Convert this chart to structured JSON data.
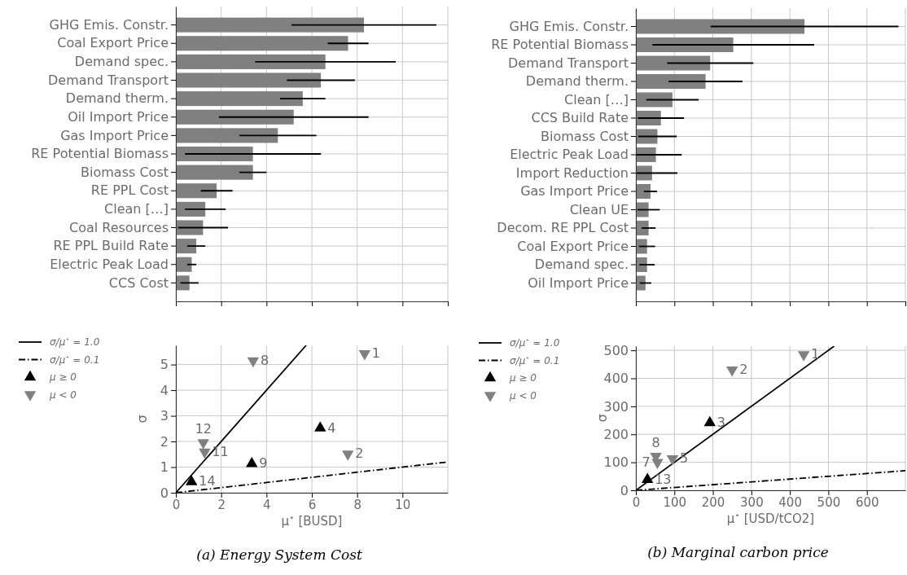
{
  "chart_data": [
    {
      "type": "bar",
      "orientation": "horizontal",
      "categories": [
        "GHG Emis. Constr.",
        "Coal Export Price",
        "Demand spec.",
        "Demand Transport",
        "Demand therm.",
        "Oil Import Price",
        "Gas Import Price",
        "RE Potential Biomass",
        "Biomass Cost",
        "RE PPL Cost",
        "Clean […]",
        "Coal Resources",
        "RE PPL Build Rate",
        "Electric Peak Load",
        "CCS Cost"
      ],
      "values": [
        8.3,
        7.6,
        6.6,
        6.4,
        5.6,
        5.2,
        4.5,
        3.4,
        3.4,
        1.8,
        1.3,
        1.2,
        0.9,
        0.7,
        0.6
      ],
      "errors": [
        3.2,
        0.9,
        3.1,
        1.5,
        1.0,
        3.3,
        1.7,
        3.0,
        0.6,
        0.7,
        0.9,
        1.1,
        0.4,
        0.2,
        0.4
      ],
      "color": "#808080",
      "xlim": [
        0,
        12
      ],
      "xticks": [
        0,
        2,
        4,
        6,
        8,
        10,
        12
      ],
      "grid": true,
      "tick_labels": "y"
    },
    {
      "type": "bar",
      "orientation": "horizontal",
      "categories": [
        "GHG Emis. Constr.",
        "RE Potential Biomass",
        "Demand Transport",
        "Demand therm.",
        "Clean […]",
        "CCS Build Rate",
        "Biomass Cost",
        "Electric Peak Load",
        "Import Reduction",
        "Gas Import Price",
        "Clean UE",
        "Decom. RE PPL Cost",
        "Coal Export Price",
        "Demand spec.",
        "Oil Import Price"
      ],
      "values": [
        438,
        253,
        193,
        181,
        95,
        65,
        56,
        52,
        42,
        38,
        33,
        33,
        29,
        29,
        25
      ],
      "errors": [
        244,
        210,
        112,
        96,
        68,
        60,
        50,
        [
          0,
          119
        ],
        [
          0,
          108
        ],
        17,
        29,
        18,
        21,
        20,
        15
      ],
      "color": "#808080",
      "xlim": [
        0,
        700
      ],
      "xticks": [
        0,
        100,
        200,
        300,
        400,
        500,
        600,
        700
      ],
      "grid": true,
      "tick_labels": "y"
    },
    {
      "type": "scatter",
      "xlabel": "μ$^{⋆}$ [BUSD]",
      "ylabel": "σ",
      "annotations": [
        "(a) Energy System Cost",
        {
          "text": "4",
          "x": 6.37,
          "y": 2.52
        },
        {
          "text": "9",
          "x": 3.35,
          "y": 1.13
        },
        {
          "text": "14",
          "x": 0.69,
          "y": 0.43
        },
        {
          "text": "1",
          "x": 8.33,
          "y": 5.43
        },
        {
          "text": "2",
          "x": 7.59,
          "y": 1.51
        },
        {
          "text": "8",
          "x": 3.41,
          "y": 5.15
        },
        {
          "text": "11",
          "x": 1.27,
          "y": 1.59
        },
        {
          "text": "12",
          "x": 1.21,
          "y": 1.96
        }
      ],
      "xlim": [
        0,
        12
      ],
      "xticks": [
        0,
        2,
        4,
        6,
        8,
        10
      ],
      "ylim": [
        0,
        5.75
      ],
      "yticks": [
        0,
        1,
        2,
        3,
        4,
        5
      ],
      "grid": true,
      "legend": "left",
      "series": [
        {
          "type": "line",
          "name": "σ/μ$^{⋆}$ = 1.0",
          "color": "#000000",
          "line_style": "solid",
          "x": [
            0,
            5.75
          ],
          "values": [
            0,
            5.75
          ]
        },
        {
          "type": "line",
          "name": "σ/μ$^{⋆}$ = 0.1",
          "color": "#000000",
          "line_style": "dashdot",
          "x": [
            0,
            12
          ],
          "values": [
            0,
            1.2
          ]
        },
        {
          "type": "scatter",
          "name": "μ ≥ 0",
          "color": "#000000",
          "marker": "triangle",
          "x": [
            6.37,
            3.35,
            0.69
          ],
          "values": [
            2.52,
            1.13,
            0.43
          ]
        },
        {
          "type": "scatter",
          "name": "μ < 0",
          "color": "#808080",
          "marker": "triangle-down",
          "x": [
            8.33,
            7.59,
            3.41,
            1.27,
            1.21
          ],
          "values": [
            5.43,
            1.51,
            5.15,
            1.59,
            1.96
          ]
        }
      ]
    },
    {
      "type": "scatter",
      "xlabel": "μ$^{⋆}$ [USD/tCO2]",
      "ylabel": "σ",
      "annotations": [
        "(b) Marginal carbon price",
        {
          "text": "3",
          "x": 192,
          "y": 241
        },
        {
          "text": "13",
          "x": 30,
          "y": 38
        },
        {
          "text": "1",
          "x": 436,
          "y": 485
        },
        {
          "text": "2",
          "x": 250,
          "y": 430
        },
        {
          "text": "5",
          "x": 95,
          "y": 113
        },
        {
          "text": "7",
          "x": 56,
          "y": 100
        },
        {
          "text": "8",
          "x": 52,
          "y": 122
        }
      ],
      "xlim": [
        0,
        700
      ],
      "xticks": [
        0,
        100,
        200,
        300,
        400,
        500,
        600
      ],
      "ylim": [
        0,
        515
      ],
      "yticks": [
        0,
        100,
        200,
        300,
        400,
        500
      ],
      "grid": true,
      "legend": "left",
      "series": [
        {
          "type": "line",
          "name": "σ/μ$^{⋆}$ = 1.0",
          "color": "#000000",
          "line_style": "solid",
          "x": [
            0,
            515
          ],
          "values": [
            0,
            515
          ]
        },
        {
          "type": "line",
          "name": "σ/μ$^{⋆}$ = 0.1",
          "color": "#000000",
          "line_style": "dashdot",
          "x": [
            0,
            700
          ],
          "values": [
            0,
            70
          ]
        },
        {
          "type": "scatter",
          "name": "μ ≥ 0",
          "color": "#000000",
          "marker": "triangle",
          "x": [
            192,
            30
          ],
          "values": [
            241,
            38
          ]
        },
        {
          "type": "scatter",
          "name": "μ < 0",
          "color": "#808080",
          "marker": "triangle-down",
          "x": [
            436,
            250,
            95,
            56,
            52
          ],
          "values": [
            485,
            430,
            113,
            100,
            122
          ]
        }
      ]
    }
  ]
}
